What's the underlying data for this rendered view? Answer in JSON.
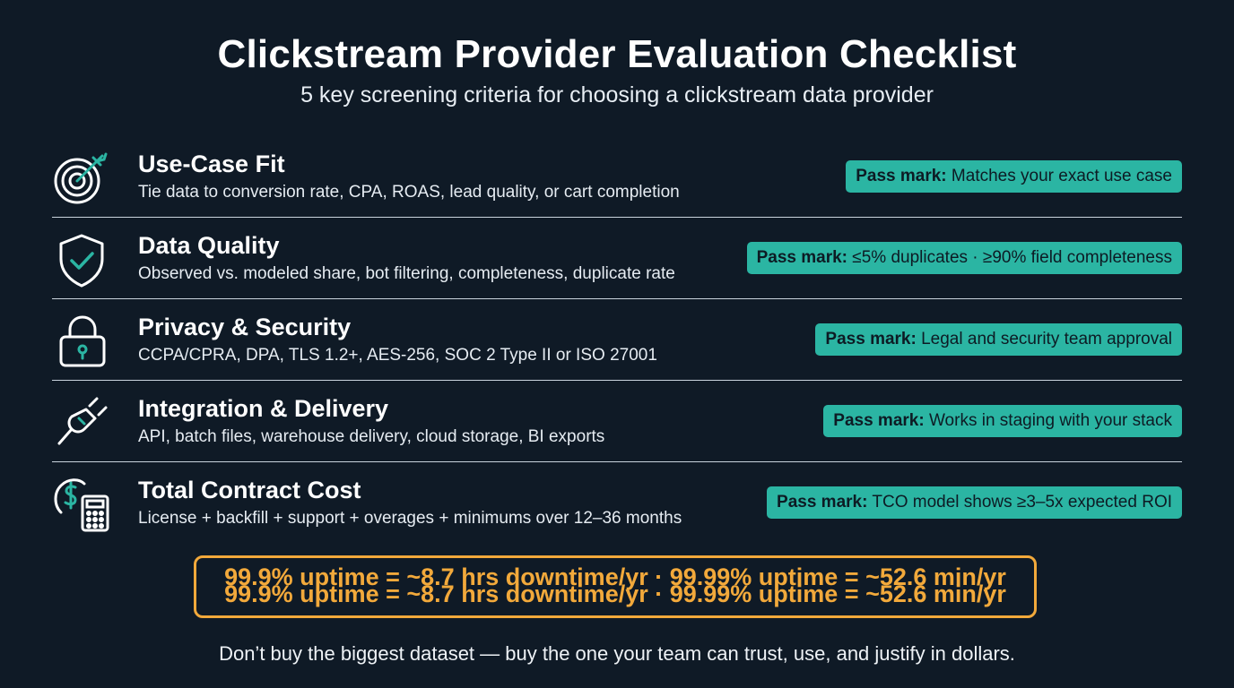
{
  "header": {
    "title": "Clickstream Provider Evaluation Checklist",
    "subtitle": "5 key screening criteria for choosing a clickstream data provider"
  },
  "colors": {
    "background": "#0f1a26",
    "accent_teal": "#2bb5a3",
    "accent_orange": "#f2a93b"
  },
  "criteria": [
    {
      "icon": "target-icon",
      "title": "Use-Case Fit",
      "description": "Tie data to conversion rate, CPA, ROAS, lead quality, or cart completion",
      "pass_label": "Pass mark:",
      "pass_text": "Matches your exact use case"
    },
    {
      "icon": "shield-check-icon",
      "title": "Data Quality",
      "description": "Observed vs. modeled share, bot filtering, completeness, duplicate rate",
      "pass_label": "Pass mark:",
      "pass_text": "≤5% duplicates · ≥90% field completeness"
    },
    {
      "icon": "padlock-icon",
      "title": "Privacy & Security",
      "description": "CCPA/CPRA, DPA, TLS 1.2+, AES-256, SOC 2 Type II or ISO 27001",
      "pass_label": "Pass mark:",
      "pass_text": "Legal and security team approval"
    },
    {
      "icon": "plug-icon",
      "title": "Integration & Delivery",
      "description": "API, batch files, warehouse delivery, cloud storage, BI exports",
      "pass_label": "Pass mark:",
      "pass_text": "Works in staging with your stack"
    },
    {
      "icon": "dollar-calculator-icon",
      "title": "Total Contract Cost",
      "description": "License + backfill + support + overages + minimums over 12–36 months",
      "pass_label": "Pass mark:",
      "pass_text": "TCO model shows ≥3–5x expected ROI"
    }
  ],
  "uptime_note": "99.9% uptime = ~8.7 hrs downtime/yr · 99.99% uptime = ~52.6 min/yr",
  "footer": "Don’t buy the biggest dataset — buy the one your team can trust, use, and justify in dollars."
}
